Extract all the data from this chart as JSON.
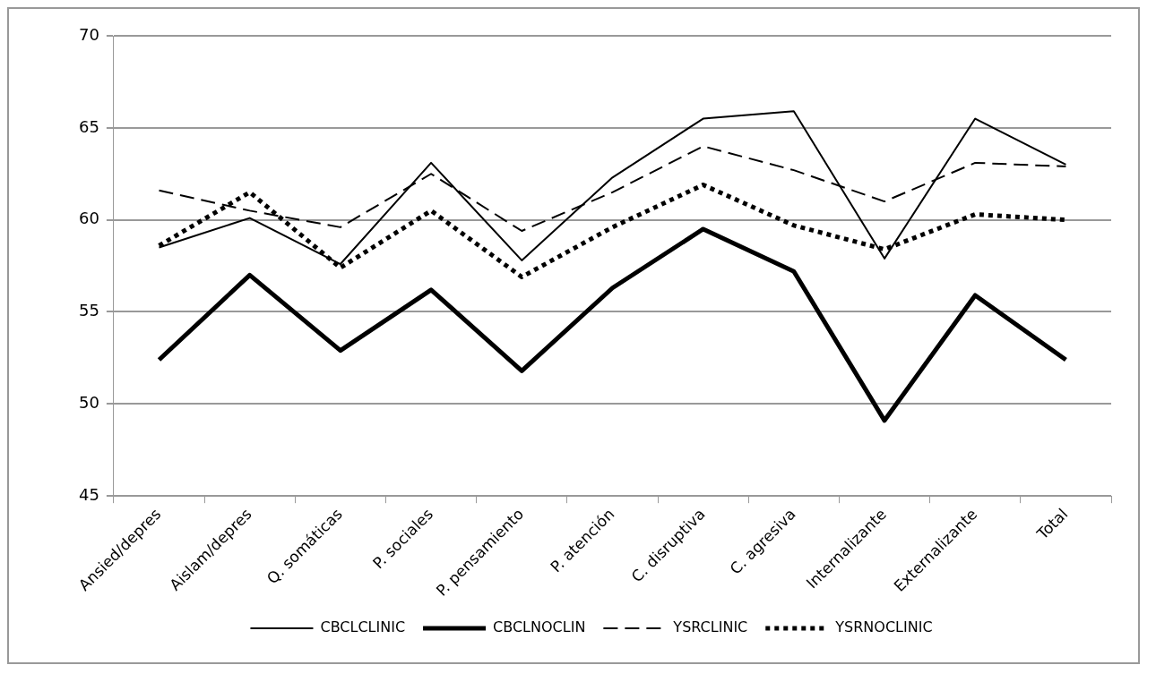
{
  "chart_data": {
    "type": "line",
    "categories": [
      "Ansied/depres",
      "Aislam/depres",
      "Q. somáticas",
      "P. sociales",
      "P. pensamiento",
      "P. atención",
      "C. disruptiva",
      "C. agresiva",
      "Internalizante",
      "Externalizante",
      "Total"
    ],
    "series": [
      {
        "name": "CBCLCLINIC",
        "color": "#000000",
        "line_style": "solid",
        "values": [
          58.5,
          60.1,
          57.6,
          63.1,
          57.8,
          62.3,
          65.5,
          65.9,
          57.9,
          65.5,
          63.0
        ]
      },
      {
        "name": "CBCLNOCLIN",
        "color": "#000000",
        "line_style": "solid",
        "values": [
          52.4,
          57.0,
          52.9,
          56.2,
          51.8,
          56.3,
          59.5,
          57.2,
          49.1,
          55.9,
          52.4
        ]
      },
      {
        "name": "YSRCLINIC",
        "color": "#000000",
        "line_style": "dashed",
        "values": [
          61.6,
          60.5,
          59.6,
          62.5,
          59.4,
          61.5,
          64.0,
          62.7,
          61.0,
          63.1,
          62.9
        ]
      },
      {
        "name": "YSRNOCLINIC",
        "color": "#000000",
        "line_style": "dotted",
        "values": [
          58.6,
          61.5,
          57.4,
          60.5,
          56.9,
          59.6,
          61.9,
          59.7,
          58.4,
          60.3,
          60.0
        ]
      }
    ],
    "ylim": [
      45,
      70
    ],
    "yticks": [
      45,
      50,
      55,
      60,
      65,
      70
    ],
    "grid": "y",
    "legend": "bottom",
    "marker": "none"
  }
}
